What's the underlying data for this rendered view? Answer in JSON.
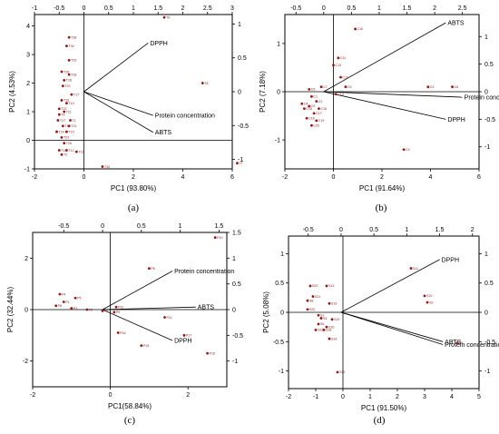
{
  "colors": {
    "point": "#8b1a1a",
    "axis": "#000000",
    "background": "#ffffff"
  },
  "chart_data": [
    {
      "type": "scatter",
      "panel_label": "(a)",
      "xlabel": "PC1 (93.80%)",
      "ylabel": "PC2 (4.53%)",
      "xlim": [
        -2,
        6
      ],
      "ylim": [
        -1,
        4.4
      ],
      "xticks": [
        -2,
        0,
        2,
        4,
        6
      ],
      "yticks": [
        -1,
        0,
        1,
        2,
        3,
        4
      ],
      "x2lim": [
        -1.0,
        3.0
      ],
      "y2lim": [
        -1.14,
        1.14
      ],
      "x2ticks": [
        -1.0,
        -0.5,
        0.0,
        0.5,
        1.0,
        1.5,
        2.0,
        2.5,
        3.0
      ],
      "y2ticks": [
        -1.0,
        -0.5,
        0.0,
        0.5,
        1.0
      ],
      "loadings": [
        {
          "label": "DPPH",
          "x": 1.3,
          "y": 0.72
        },
        {
          "label": "Protein concentration",
          "x": 1.4,
          "y": -0.35
        },
        {
          "label": "ABTS",
          "x": 1.4,
          "y": -0.6
        }
      ],
      "points": [
        {
          "label": "T9",
          "x": 3.25,
          "y": 4.3
        },
        {
          "label": "T8",
          "x": 4.8,
          "y": 2.0
        },
        {
          "label": "T7",
          "x": 6.2,
          "y": -0.8
        },
        {
          "label": "T38",
          "x": -0.6,
          "y": 3.6
        },
        {
          "label": "T30",
          "x": -0.7,
          "y": 3.3
        },
        {
          "label": "T29",
          "x": -0.6,
          "y": 2.8
        },
        {
          "label": "T26",
          "x": -0.9,
          "y": 2.4
        },
        {
          "label": "T18",
          "x": -0.6,
          "y": 2.3
        },
        {
          "label": "T28",
          "x": -0.8,
          "y": 2.1
        },
        {
          "label": "T20",
          "x": -0.85,
          "y": 1.9
        },
        {
          "label": "T17",
          "x": -0.5,
          "y": 1.6
        },
        {
          "label": "T16",
          "x": -0.9,
          "y": 1.4
        },
        {
          "label": "T19",
          "x": -0.7,
          "y": 1.3
        },
        {
          "label": "T22",
          "x": -1.0,
          "y": 1.1
        },
        {
          "label": "T21",
          "x": -0.8,
          "y": 1.0
        },
        {
          "label": "T6",
          "x": -1.0,
          "y": 0.9
        },
        {
          "label": "T27",
          "x": -1.05,
          "y": 0.7
        },
        {
          "label": "T1",
          "x": -0.55,
          "y": 0.7
        },
        {
          "label": "T10",
          "x": -0.85,
          "y": 0.5
        },
        {
          "label": "T13",
          "x": -0.6,
          "y": 0.5
        },
        {
          "label": "T24",
          "x": -1.1,
          "y": 0.3
        },
        {
          "label": "T15",
          "x": -0.7,
          "y": 0.3
        },
        {
          "label": "T23",
          "x": -0.9,
          "y": 0.1
        },
        {
          "label": "T25",
          "x": -0.8,
          "y": -0.1
        },
        {
          "label": "T14",
          "x": -1.0,
          "y": -0.35
        },
        {
          "label": "T12",
          "x": -0.7,
          "y": -0.35
        },
        {
          "label": "T11",
          "x": -0.3,
          "y": -0.4
        },
        {
          "label": "T2",
          "x": -0.9,
          "y": -0.5
        },
        {
          "label": "T10",
          "x": 0.75,
          "y": -0.92
        }
      ]
    },
    {
      "type": "scatter",
      "panel_label": "(b)",
      "xlabel": "PC1 (91.64%)",
      "ylabel": "PC2 (7.18%)",
      "xlim": [
        -2,
        6
      ],
      "ylim": [
        -1.6,
        1.6
      ],
      "xticks": [
        -2,
        0,
        2,
        4,
        6
      ],
      "yticks": [
        -1,
        0,
        1
      ],
      "x2lim": [
        -0.7,
        2.8
      ],
      "y2lim": [
        -1.4,
        1.4
      ],
      "x2ticks": [
        -0.5,
        0.0,
        0.5,
        1.0,
        1.5,
        2.0,
        2.5
      ],
      "y2ticks": [
        -1.0,
        -0.5,
        0.0,
        0.5,
        1.0
      ],
      "loadings": [
        {
          "label": "ABTS",
          "x": 2.2,
          "y": 1.25
        },
        {
          "label": "Protein concentration",
          "x": 2.5,
          "y": -0.1
        },
        {
          "label": "DPPH",
          "x": 2.2,
          "y": -0.5
        }
      ],
      "points": [
        {
          "label": "C10",
          "x": 0.9,
          "y": 1.3
        },
        {
          "label": "C11",
          "x": 0.2,
          "y": 0.7
        },
        {
          "label": "C13",
          "x": 0.0,
          "y": 0.55
        },
        {
          "label": "C12",
          "x": 0.3,
          "y": 0.3
        },
        {
          "label": "C5",
          "x": 0.5,
          "y": 0.1
        },
        {
          "label": "C7",
          "x": -0.5,
          "y": 0.1
        },
        {
          "label": "C3",
          "x": 3.9,
          "y": 0.1
        },
        {
          "label": "C8",
          "x": 4.9,
          "y": 0.1
        },
        {
          "label": "C6",
          "x": -1.0,
          "y": 0.05
        },
        {
          "label": "C14",
          "x": 0.1,
          "y": -0.05
        },
        {
          "label": "C1",
          "x": -0.9,
          "y": -0.1
        },
        {
          "label": "C2",
          "x": -0.7,
          "y": -0.2
        },
        {
          "label": "C4",
          "x": -1.3,
          "y": -0.25
        },
        {
          "label": "C9",
          "x": -1.0,
          "y": -0.3
        },
        {
          "label": "C15",
          "x": -1.2,
          "y": -0.35
        },
        {
          "label": "C16",
          "x": -0.6,
          "y": -0.35
        },
        {
          "label": "C17",
          "x": -0.8,
          "y": -0.45
        },
        {
          "label": "C18",
          "x": -1.1,
          "y": -0.55
        },
        {
          "label": "C19",
          "x": -0.7,
          "y": -0.6
        },
        {
          "label": "C20",
          "x": -0.9,
          "y": -0.7
        },
        {
          "label": "C3",
          "x": 2.9,
          "y": -1.2
        }
      ]
    },
    {
      "type": "scatter",
      "panel_label": "(c)",
      "xlabel": "PC1(58.84%)",
      "ylabel": "PC2 (32.44%)",
      "xlim": [
        -2,
        3
      ],
      "ylim": [
        -3,
        3
      ],
      "xticks": [
        -2,
        0,
        2
      ],
      "yticks": [
        -2,
        0,
        2
      ],
      "x2lim": [
        -0.9,
        1.6
      ],
      "y2lim": [
        -1.5,
        1.5
      ],
      "x2ticks": [
        -0.5,
        0.0,
        0.5,
        1.0,
        1.5
      ],
      "y2ticks": [
        -1.0,
        -0.5,
        0.0,
        0.5,
        1.0,
        1.5
      ],
      "loadings": [
        {
          "label": "Protein concentration",
          "x": 0.9,
          "y": 0.75
        },
        {
          "label": "ABTS",
          "x": 1.2,
          "y": 0.05
        },
        {
          "label": "DPPH",
          "x": 0.9,
          "y": -0.6
        }
      ],
      "points": [
        {
          "label": "P10",
          "x": 2.7,
          "y": 2.8
        },
        {
          "label": "P6",
          "x": 1.0,
          "y": 1.6
        },
        {
          "label": "P4",
          "x": -1.3,
          "y": 0.6
        },
        {
          "label": "P5",
          "x": -0.9,
          "y": 0.45
        },
        {
          "label": "P1",
          "x": -1.2,
          "y": 0.3
        },
        {
          "label": "P8",
          "x": -1.4,
          "y": 0.15
        },
        {
          "label": "P3",
          "x": -1.0,
          "y": 0.05
        },
        {
          "label": "P2",
          "x": -0.6,
          "y": 0.0
        },
        {
          "label": "P7",
          "x": -0.2,
          "y": -0.05
        },
        {
          "label": "P9",
          "x": 0.1,
          "y": -0.1
        },
        {
          "label": "P12",
          "x": 0.15,
          "y": 0.1
        },
        {
          "label": "P11",
          "x": 1.4,
          "y": -0.3
        },
        {
          "label": "P18",
          "x": 0.2,
          "y": -0.9
        },
        {
          "label": "P17",
          "x": 1.9,
          "y": -1.0
        },
        {
          "label": "P15",
          "x": 0.8,
          "y": -1.4
        },
        {
          "label": "P16",
          "x": 2.5,
          "y": -1.7
        }
      ]
    },
    {
      "type": "scatter",
      "panel_label": "(d)",
      "xlabel": "PC1 (91.50%)",
      "ylabel": "PC2 (5.08%)",
      "xlim": [
        -2,
        5
      ],
      "ylim": [
        -1.3,
        1.3
      ],
      "xticks": [
        -2,
        -1,
        0,
        1,
        2,
        3,
        4,
        5
      ],
      "yticks": [
        -1.0,
        -0.5,
        0.0,
        0.5,
        1.0
      ],
      "x2lim": [
        -0.8,
        2.1
      ],
      "y2lim": [
        -1.3,
        1.3
      ],
      "x2ticks": [
        -0.5,
        0.0,
        0.5,
        1.0,
        1.5,
        2.0
      ],
      "y2ticks": [
        -1.0,
        -0.5,
        0.0,
        0.5,
        1.0
      ],
      "loadings": [
        {
          "label": "DPPH",
          "x": 1.5,
          "y": 0.9
        },
        {
          "label": "ABTS",
          "x": 1.55,
          "y": -0.5
        },
        {
          "label": "Protein concentration",
          "x": 1.55,
          "y": -0.55
        }
      ],
      "points": [
        {
          "label": "S11",
          "x": 2.5,
          "y": 0.75
        },
        {
          "label": "S20",
          "x": -1.2,
          "y": 0.45
        },
        {
          "label": "S13",
          "x": -0.6,
          "y": 0.45
        },
        {
          "label": "S10",
          "x": 3.0,
          "y": 0.28
        },
        {
          "label": "S9",
          "x": 3.1,
          "y": 0.17
        },
        {
          "label": "S21",
          "x": -1.1,
          "y": 0.27
        },
        {
          "label": "S8",
          "x": -1.3,
          "y": 0.2
        },
        {
          "label": "S15",
          "x": -0.5,
          "y": 0.15
        },
        {
          "label": "S22",
          "x": -1.3,
          "y": 0.05
        },
        {
          "label": "S1",
          "x": -0.9,
          "y": -0.05
        },
        {
          "label": "S3",
          "x": -0.8,
          "y": -0.1
        },
        {
          "label": "S19",
          "x": -0.4,
          "y": -0.12
        },
        {
          "label": "S5",
          "x": -0.9,
          "y": -0.2
        },
        {
          "label": "S16",
          "x": -0.6,
          "y": -0.25
        },
        {
          "label": "S23",
          "x": -1.0,
          "y": -0.3
        },
        {
          "label": "S18",
          "x": -0.7,
          "y": -0.3
        },
        {
          "label": "S14",
          "x": -0.5,
          "y": -0.45
        },
        {
          "label": "S6",
          "x": 4.2,
          "y": -0.52
        },
        {
          "label": "S12",
          "x": -0.2,
          "y": -1.02
        }
      ]
    }
  ]
}
